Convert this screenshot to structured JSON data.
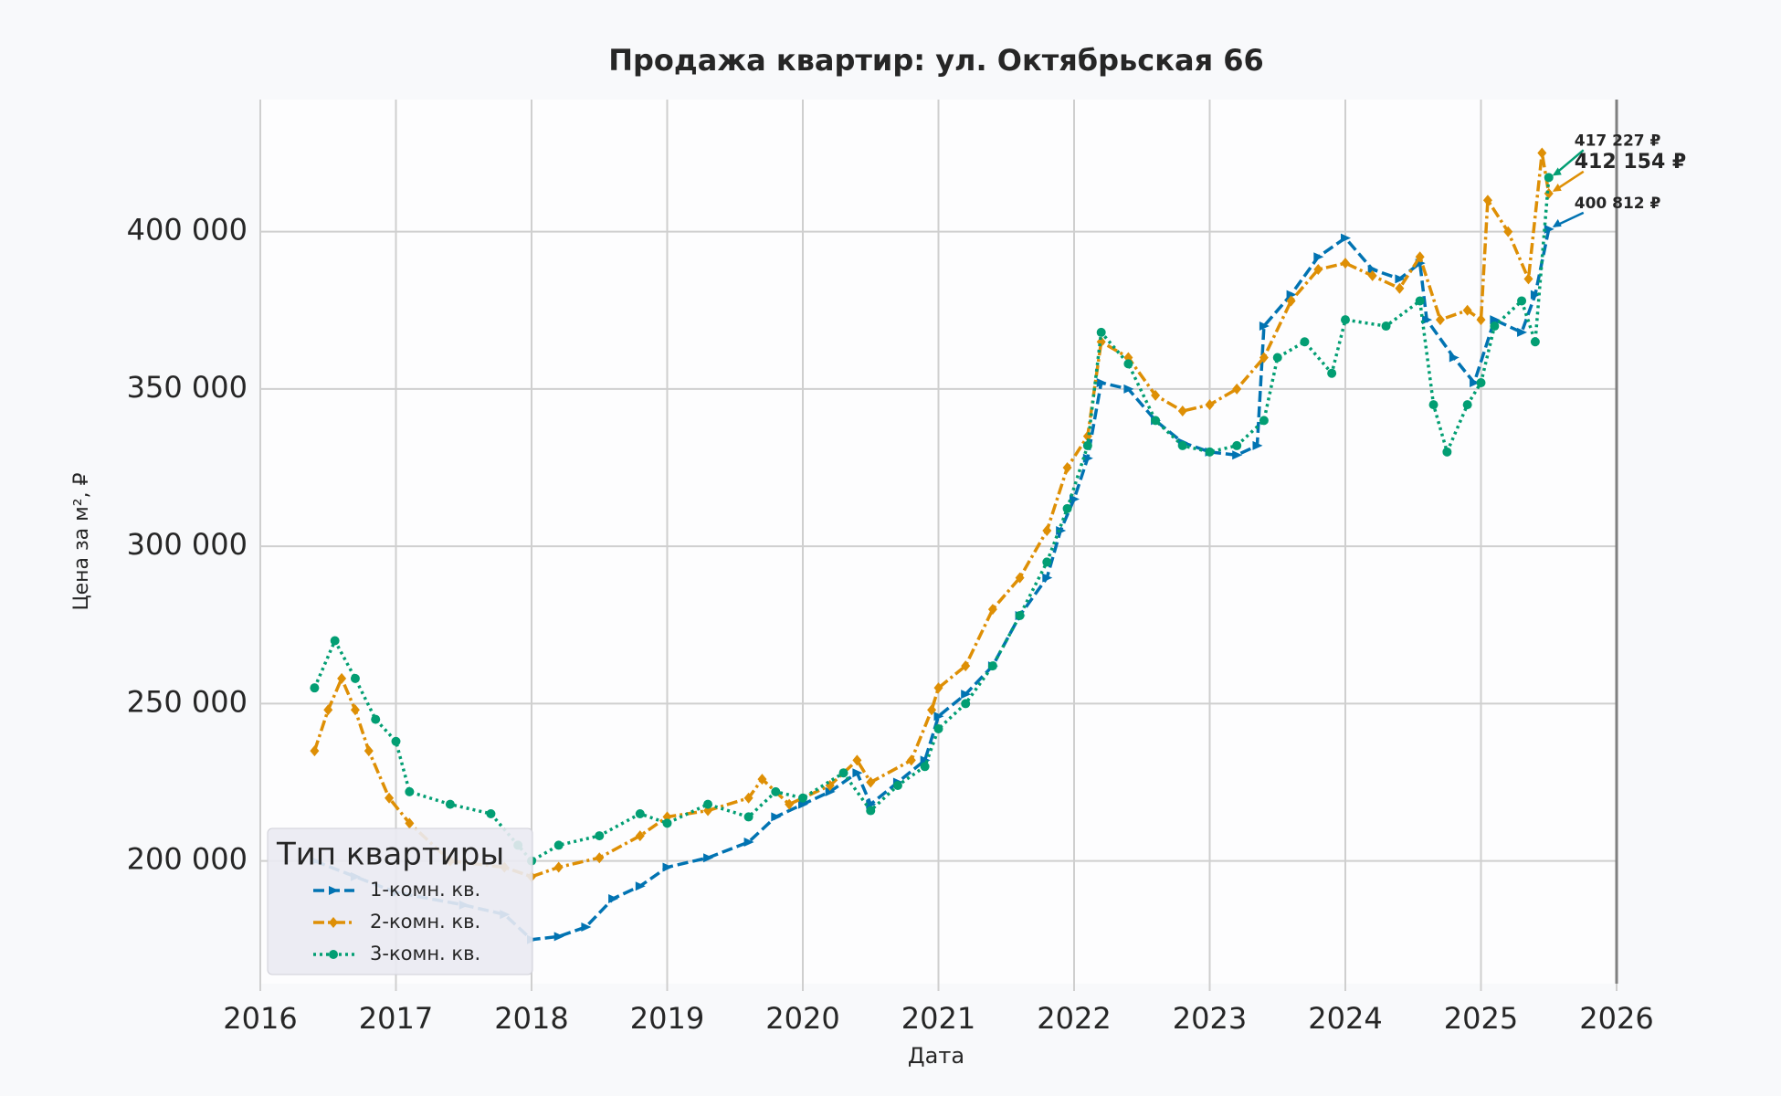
{
  "chart_data": {
    "type": "line",
    "title": "Продажа квартир: ул. Октябрьская 66",
    "x_label": "Дата",
    "y_label": "Цена за м², ₽",
    "legend_title": "Тип квартиры",
    "legend_position": "lower left",
    "grid": true,
    "xlim": [
      2016,
      2026
    ],
    "xticks": [
      2016,
      2017,
      2018,
      2019,
      2020,
      2021,
      2022,
      2023,
      2024,
      2025,
      2026
    ],
    "ylim": [
      161000,
      442000
    ],
    "yticks": [
      {
        "value": 200000,
        "label": "200 000"
      },
      {
        "value": 250000,
        "label": "250 000"
      },
      {
        "value": 300000,
        "label": "300 000"
      },
      {
        "value": 350000,
        "label": "350 000"
      },
      {
        "value": 400000,
        "label": "400 000"
      }
    ],
    "vline": 2026,
    "series": [
      {
        "name": "1-комн. кв.",
        "color": "#0173b2",
        "dash": "dashed",
        "marker": "triangle",
        "x": [
          2016.4,
          2016.7,
          2017.0,
          2017.5,
          2017.8,
          2018.0,
          2018.2,
          2018.4,
          2018.6,
          2018.8,
          2019.0,
          2019.3,
          2019.6,
          2019.8,
          2020.0,
          2020.2,
          2020.4,
          2020.5,
          2020.7,
          2020.9,
          2021.0,
          2021.2,
          2021.4,
          2021.6,
          2021.8,
          2021.9,
          2022.0,
          2022.1,
          2022.2,
          2022.4,
          2022.6,
          2022.8,
          2023.0,
          2023.2,
          2023.35,
          2023.4,
          2023.6,
          2023.8,
          2024.0,
          2024.2,
          2024.4,
          2024.55,
          2024.6,
          2024.8,
          2024.95,
          2025.1,
          2025.3,
          2025.4,
          2025.5
        ],
        "values": [
          200000,
          195000,
          190000,
          186000,
          183000,
          175000,
          176000,
          179000,
          188000,
          192000,
          198000,
          201000,
          206000,
          214000,
          218000,
          222000,
          228000,
          218000,
          225000,
          232000,
          246000,
          253000,
          262000,
          278000,
          290000,
          305000,
          315000,
          328000,
          352000,
          350000,
          340000,
          333000,
          330000,
          329000,
          332000,
          370000,
          380000,
          392000,
          398000,
          388000,
          385000,
          390000,
          372000,
          360000,
          352000,
          372000,
          368000,
          380000,
          400812
        ]
      },
      {
        "name": "2-комн. кв.",
        "color": "#de8f05",
        "dash": "dashdot",
        "marker": "diamond",
        "x": [
          2016.4,
          2016.5,
          2016.6,
          2016.7,
          2016.8,
          2016.95,
          2017.1,
          2017.4,
          2017.8,
          2018.0,
          2018.2,
          2018.5,
          2018.8,
          2019.0,
          2019.3,
          2019.6,
          2019.7,
          2019.9,
          2020.2,
          2020.4,
          2020.5,
          2020.8,
          2020.95,
          2021.0,
          2021.2,
          2021.4,
          2021.6,
          2021.8,
          2021.95,
          2022.1,
          2022.2,
          2022.4,
          2022.6,
          2022.8,
          2023.0,
          2023.2,
          2023.4,
          2023.6,
          2023.8,
          2024.0,
          2024.2,
          2024.4,
          2024.55,
          2024.7,
          2024.9,
          2025.0,
          2025.05,
          2025.2,
          2025.35,
          2025.45,
          2025.5
        ],
        "values": [
          235000,
          248000,
          258000,
          248000,
          235000,
          220000,
          212000,
          200000,
          198000,
          195000,
          198000,
          201000,
          208000,
          214000,
          216000,
          220000,
          226000,
          218000,
          224000,
          232000,
          225000,
          232000,
          248000,
          255000,
          262000,
          280000,
          290000,
          305000,
          325000,
          335000,
          365000,
          360000,
          348000,
          343000,
          345000,
          350000,
          360000,
          378000,
          388000,
          390000,
          386000,
          382000,
          392000,
          372000,
          375000,
          372000,
          410000,
          400000,
          385000,
          425000,
          412154
        ]
      },
      {
        "name": "3-комн. кв.",
        "color": "#029e73",
        "dash": "dotted",
        "marker": "circle",
        "x": [
          2016.4,
          2016.55,
          2016.7,
          2016.85,
          2017.0,
          2017.1,
          2017.4,
          2017.7,
          2017.9,
          2018.0,
          2018.2,
          2018.5,
          2018.8,
          2019.0,
          2019.3,
          2019.6,
          2019.8,
          2020.0,
          2020.3,
          2020.5,
          2020.7,
          2020.9,
          2021.0,
          2021.2,
          2021.4,
          2021.6,
          2021.8,
          2021.95,
          2022.1,
          2022.2,
          2022.4,
          2022.6,
          2022.8,
          2023.0,
          2023.2,
          2023.4,
          2023.5,
          2023.7,
          2023.9,
          2024.0,
          2024.3,
          2024.55,
          2024.65,
          2024.75,
          2024.9,
          2025.0,
          2025.1,
          2025.3,
          2025.4,
          2025.5
        ],
        "values": [
          255000,
          270000,
          258000,
          245000,
          238000,
          222000,
          218000,
          215000,
          205000,
          200000,
          205000,
          208000,
          215000,
          212000,
          218000,
          214000,
          222000,
          220000,
          228000,
          216000,
          224000,
          230000,
          242000,
          250000,
          262000,
          278000,
          295000,
          312000,
          332000,
          368000,
          358000,
          340000,
          332000,
          330000,
          332000,
          340000,
          360000,
          365000,
          355000,
          372000,
          370000,
          378000,
          345000,
          330000,
          345000,
          352000,
          370000,
          378000,
          365000,
          417227
        ]
      }
    ],
    "annotations": [
      {
        "label": "417 227 ₽",
        "value": 417227,
        "x": 2025.5,
        "color": "#029e73"
      },
      {
        "label": "412 154 ₽",
        "value": 412154,
        "x": 2025.5,
        "color": "#de8f05"
      },
      {
        "label": "400 812 ₽",
        "value": 400812,
        "x": 2025.5,
        "color": "#0173b2"
      }
    ]
  }
}
